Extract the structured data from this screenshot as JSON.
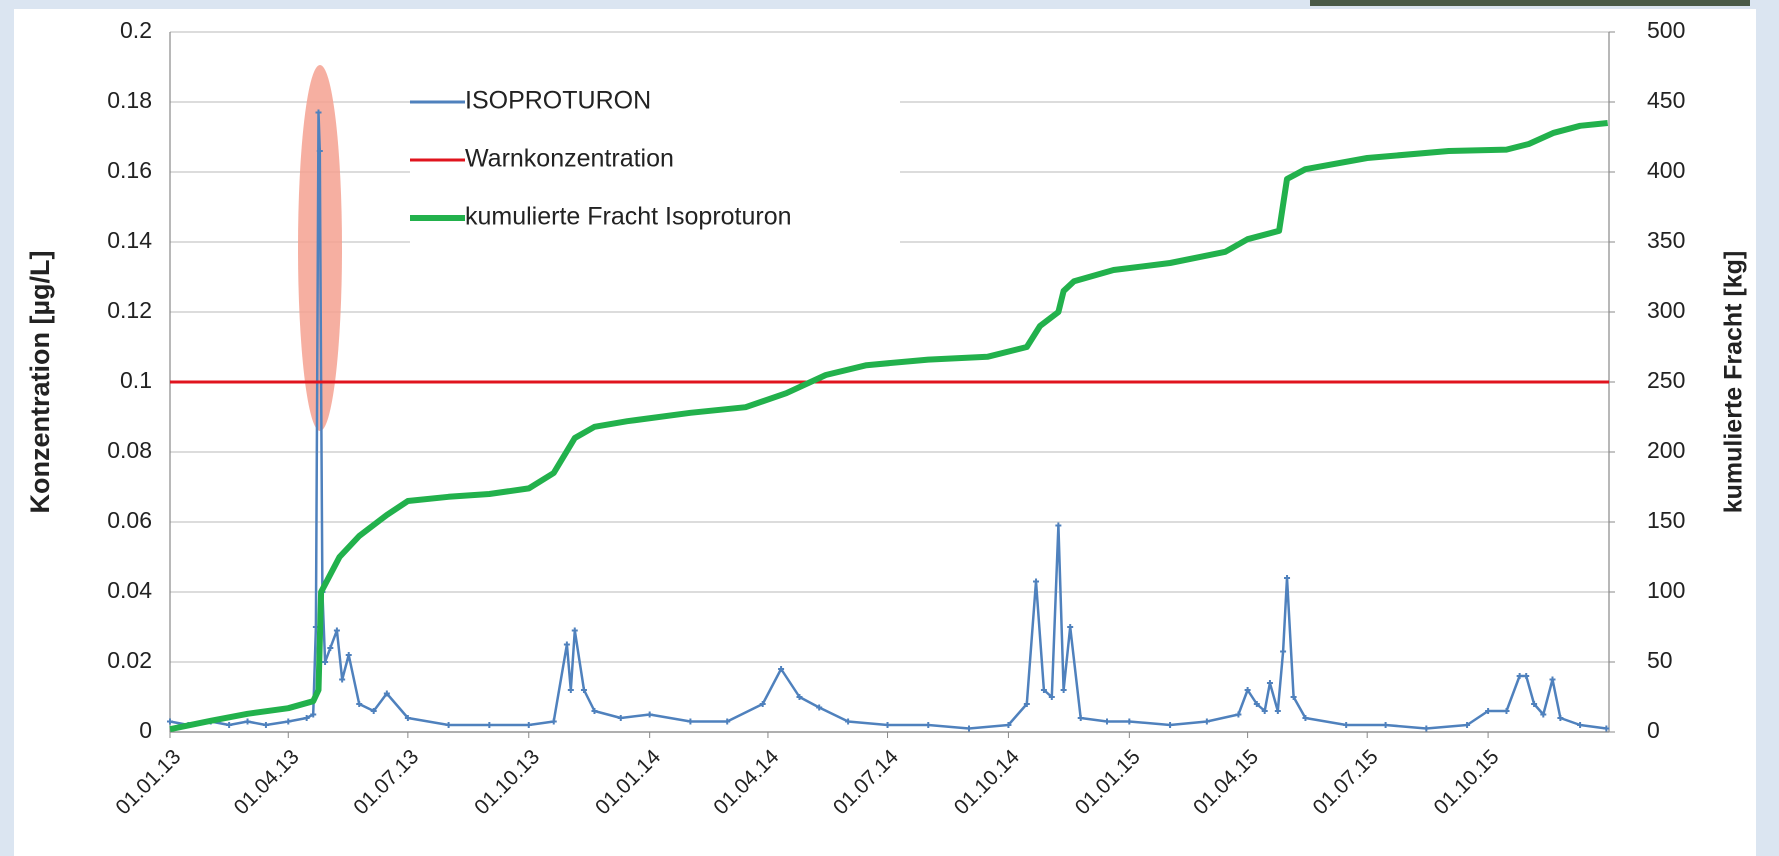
{
  "chart_data": {
    "type": "line",
    "y_label": "Konzentration [µg/L]",
    "y2_label": "kumulierte Fracht [kg]",
    "xlim": [
      "2013-01-01",
      "2016-01-01"
    ],
    "xticks": [
      {
        "value": "2013-01-01",
        "label": "01.01.13"
      },
      {
        "value": "2013-04-01",
        "label": "01.04.13"
      },
      {
        "value": "2013-07-01",
        "label": "01.07.13"
      },
      {
        "value": "2013-10-01",
        "label": "01.10.13"
      },
      {
        "value": "2014-01-01",
        "label": "01.01.14"
      },
      {
        "value": "2014-04-01",
        "label": "01.04.14"
      },
      {
        "value": "2014-07-01",
        "label": "01.07.14"
      },
      {
        "value": "2014-10-01",
        "label": "01.10.14"
      },
      {
        "value": "2015-01-01",
        "label": "01.01.15"
      },
      {
        "value": "2015-04-01",
        "label": "01.04.15"
      },
      {
        "value": "2015-07-01",
        "label": "01.07.15"
      },
      {
        "value": "2015-10-01",
        "label": "01.10.15"
      }
    ],
    "ylim": [
      0,
      0.2
    ],
    "yticks": [
      0,
      0.02,
      0.04,
      0.06,
      0.08,
      0.1,
      0.12,
      0.14,
      0.16,
      0.18,
      0.2
    ],
    "y2lim": [
      0,
      500
    ],
    "y2ticks": [
      0,
      50,
      100,
      150,
      200,
      250,
      300,
      350,
      400,
      450,
      500
    ],
    "grid": true,
    "legend": "upper left",
    "series": [
      {
        "name": "ISOPROTURON",
        "color": "#4f81bd",
        "markers": true,
        "x": [
          "2013-01-01",
          "2013-01-15",
          "2013-02-01",
          "2013-02-15",
          "2013-03-01",
          "2013-03-15",
          "2013-04-01",
          "2013-04-15",
          "2013-04-20",
          "2013-04-22",
          "2013-04-23",
          "2013-04-24",
          "2013-04-25",
          "2013-04-26",
          "2013-04-27",
          "2013-04-29",
          "2013-05-03",
          "2013-05-08",
          "2013-05-12",
          "2013-05-17",
          "2013-05-25",
          "2013-06-05",
          "2013-06-15",
          "2013-07-01",
          "2013-08-01",
          "2013-09-01",
          "2013-10-01",
          "2013-10-20",
          "2013-10-30",
          "2013-11-02",
          "2013-11-05",
          "2013-11-12",
          "2013-11-20",
          "2013-12-10",
          "2014-01-01",
          "2014-02-01",
          "2014-03-01",
          "2014-03-28",
          "2014-04-11",
          "2014-04-25",
          "2014-05-10",
          "2014-06-01",
          "2014-07-01",
          "2014-08-01",
          "2014-09-01",
          "2014-10-01",
          "2014-10-15",
          "2014-10-22",
          "2014-10-28",
          "2014-11-03",
          "2014-11-08",
          "2014-11-12",
          "2014-11-17",
          "2014-11-25",
          "2014-12-15",
          "2015-01-01",
          "2015-02-01",
          "2015-03-01",
          "2015-03-25",
          "2015-04-01",
          "2015-04-08",
          "2015-04-14",
          "2015-04-18",
          "2015-04-24",
          "2015-04-28",
          "2015-05-01",
          "2015-05-06",
          "2015-05-15",
          "2015-06-15",
          "2015-07-15",
          "2015-08-15",
          "2015-09-15",
          "2015-10-01",
          "2015-10-15",
          "2015-10-25",
          "2015-10-30",
          "2015-11-05",
          "2015-11-12",
          "2015-11-19",
          "2015-11-25",
          "2015-12-10",
          "2015-12-30"
        ],
        "values": [
          0.003,
          0.002,
          0.003,
          0.002,
          0.003,
          0.002,
          0.003,
          0.004,
          0.005,
          0.03,
          0.1,
          0.177,
          0.166,
          0.1,
          0.04,
          0.02,
          0.024,
          0.029,
          0.015,
          0.022,
          0.008,
          0.006,
          0.011,
          0.004,
          0.002,
          0.002,
          0.002,
          0.003,
          0.025,
          0.012,
          0.029,
          0.012,
          0.006,
          0.004,
          0.005,
          0.003,
          0.003,
          0.008,
          0.018,
          0.01,
          0.007,
          0.003,
          0.002,
          0.002,
          0.001,
          0.002,
          0.008,
          0.043,
          0.012,
          0.01,
          0.059,
          0.012,
          0.03,
          0.004,
          0.003,
          0.003,
          0.002,
          0.003,
          0.005,
          0.012,
          0.008,
          0.006,
          0.014,
          0.006,
          0.023,
          0.044,
          0.01,
          0.004,
          0.002,
          0.002,
          0.001,
          0.002,
          0.006,
          0.006,
          0.016,
          0.016,
          0.008,
          0.005,
          0.015,
          0.004,
          0.002,
          0.001
        ]
      },
      {
        "name": "Warnkonzentration",
        "color": "#e0141e",
        "x": [
          "2013-01-01",
          "2016-01-01"
        ],
        "values": [
          0.1,
          0.1
        ]
      },
      {
        "name": "kumulierte Fracht Isoproturon",
        "color": "#22b14c",
        "axis": "y2",
        "x": [
          "2013-01-01",
          "2013-02-01",
          "2013-03-01",
          "2013-04-01",
          "2013-04-20",
          "2013-04-24",
          "2013-04-26",
          "2013-05-10",
          "2013-05-25",
          "2013-06-15",
          "2013-07-01",
          "2013-08-01",
          "2013-09-01",
          "2013-10-01",
          "2013-10-20",
          "2013-11-05",
          "2013-11-20",
          "2013-12-15",
          "2014-02-01",
          "2014-03-15",
          "2014-04-15",
          "2014-05-15",
          "2014-06-15",
          "2014-08-01",
          "2014-09-15",
          "2014-10-15",
          "2014-10-25",
          "2014-11-08",
          "2014-11-12",
          "2014-11-20",
          "2014-12-20",
          "2015-02-01",
          "2015-03-15",
          "2015-04-01",
          "2015-04-25",
          "2015-05-01",
          "2015-05-15",
          "2015-07-01",
          "2015-09-01",
          "2015-10-15",
          "2015-11-01",
          "2015-11-20",
          "2015-12-10",
          "2015-12-31"
        ],
        "values": [
          2,
          8,
          13,
          17,
          22,
          30,
          100,
          125,
          140,
          155,
          165,
          168,
          170,
          174,
          185,
          210,
          218,
          222,
          228,
          232,
          242,
          255,
          262,
          266,
          268,
          275,
          290,
          300,
          315,
          322,
          330,
          335,
          343,
          352,
          358,
          395,
          402,
          410,
          415,
          416,
          420,
          428,
          433,
          435
        ]
      }
    ]
  }
}
